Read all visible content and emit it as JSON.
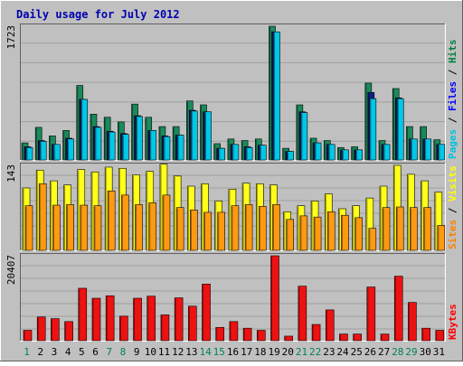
{
  "chart_data": [
    {
      "type": "bar",
      "title": "Daily usage for July 2012",
      "categories": [
        "1",
        "2",
        "3",
        "4",
        "5",
        "6",
        "7",
        "8",
        "9",
        "10",
        "11",
        "12",
        "13",
        "14",
        "15",
        "16",
        "17",
        "18",
        "19",
        "20",
        "21",
        "22",
        "23",
        "24",
        "25",
        "26",
        "27",
        "28",
        "29",
        "30",
        "31"
      ],
      "weekend_days": [
        "1",
        "7",
        "8",
        "14",
        "15",
        "21",
        "22",
        "28",
        "29"
      ],
      "ylim": [
        0,
        1723
      ],
      "ytick_label": "1723",
      "legend": [
        {
          "label": "Pages",
          "color": "#00c0e0"
        },
        {
          "label": "Files",
          "color": "#0000ff"
        },
        {
          "label": "Hits",
          "color": "#008040"
        }
      ],
      "series": [
        {
          "name": "Hits",
          "color": "#1a8a5a",
          "values": [
            220,
            420,
            310,
            380,
            960,
            590,
            550,
            490,
            720,
            550,
            430,
            430,
            760,
            710,
            210,
            270,
            250,
            270,
            1723,
            150,
            710,
            280,
            250,
            160,
            170,
            990,
            250,
            920,
            430,
            430,
            260
          ]
        },
        {
          "name": "Files",
          "color": "#10208a",
          "values": [
            170,
            250,
            200,
            280,
            780,
            430,
            370,
            340,
            570,
            380,
            310,
            320,
            640,
            620,
            150,
            200,
            170,
            190,
            1650,
            110,
            620,
            220,
            200,
            130,
            130,
            870,
            200,
            800,
            270,
            270,
            200
          ]
        },
        {
          "name": "Pages",
          "color": "#00c8e8",
          "values": [
            160,
            240,
            200,
            270,
            780,
            420,
            360,
            330,
            560,
            380,
            300,
            320,
            630,
            620,
            150,
            200,
            160,
            190,
            1650,
            110,
            610,
            220,
            200,
            130,
            130,
            790,
            200,
            790,
            270,
            270,
            200
          ]
        }
      ]
    },
    {
      "type": "bar",
      "categories": [
        "1",
        "2",
        "3",
        "4",
        "5",
        "6",
        "7",
        "8",
        "9",
        "10",
        "11",
        "12",
        "13",
        "14",
        "15",
        "16",
        "17",
        "18",
        "19",
        "20",
        "21",
        "22",
        "23",
        "24",
        "25",
        "26",
        "27",
        "28",
        "29",
        "30",
        "31"
      ],
      "ylim": [
        0,
        143
      ],
      "ytick_label": "143",
      "legend": [
        {
          "label": "Sites",
          "color": "#ff8000"
        },
        {
          "label": "Visits",
          "color": "#ffff00"
        }
      ],
      "series": [
        {
          "name": "Visits",
          "color": "#ffff1a",
          "values": [
            105,
            135,
            117,
            110,
            136,
            132,
            140,
            138,
            127,
            133,
            145,
            125,
            108,
            112,
            83,
            103,
            113,
            112,
            110,
            65,
            75,
            83,
            95,
            70,
            75,
            88,
            108,
            143,
            128,
            117,
            98
          ]
        },
        {
          "name": "Sites",
          "color": "#ff9a10",
          "values": [
            75,
            112,
            76,
            77,
            76,
            75,
            100,
            93,
            77,
            80,
            93,
            72,
            68,
            64,
            64,
            75,
            77,
            74,
            77,
            52,
            58,
            56,
            65,
            59,
            55,
            37,
            72,
            73,
            72,
            72,
            42
          ]
        }
      ]
    },
    {
      "type": "bar",
      "categories": [
        "1",
        "2",
        "3",
        "4",
        "5",
        "6",
        "7",
        "8",
        "9",
        "10",
        "11",
        "12",
        "13",
        "14",
        "15",
        "16",
        "17",
        "18",
        "19",
        "20",
        "21",
        "22",
        "23",
        "24",
        "25",
        "26",
        "27",
        "28",
        "29",
        "30",
        "31"
      ],
      "ylim": [
        0,
        20407
      ],
      "ytick_label": "20407",
      "legend": [
        {
          "label": "KBytes",
          "color": "#ff0000"
        }
      ],
      "series": [
        {
          "name": "KBytes",
          "color": "#ee1111",
          "values": [
            2500,
            5700,
            5300,
            4600,
            12600,
            10200,
            10800,
            5900,
            10200,
            10700,
            6200,
            10300,
            8300,
            13600,
            3200,
            4600,
            3000,
            2500,
            20407,
            1100,
            13100,
            3900,
            7400,
            1600,
            1600,
            12900,
            1600,
            15500,
            9200,
            3000,
            2500
          ]
        }
      ]
    }
  ]
}
